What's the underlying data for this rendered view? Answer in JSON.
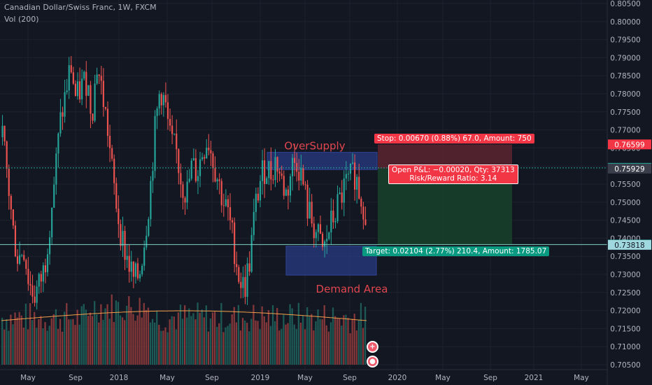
{
  "header": {
    "title": "Canadian Dollar/Swiss Franc, 1W, FXCM",
    "volume_label": "Vol (200)"
  },
  "chart_data": {
    "type": "candlestick",
    "symbol": "Canadian Dollar/Swiss Franc",
    "interval": "1W",
    "ylim": [
      0.705,
      0.805
    ],
    "y_ticks": [
      "0.80500",
      "0.80000",
      "0.79500",
      "0.79000",
      "0.78500",
      "0.78000",
      "0.77500",
      "0.77000",
      "0.76500",
      "0.76000",
      "0.75500",
      "0.75000",
      "0.74500",
      "0.74000",
      "0.73500",
      "0.73000",
      "0.72500",
      "0.72000",
      "0.71500",
      "0.71000",
      "0.70500"
    ],
    "x_ticks": [
      "May",
      "Sep",
      "2018",
      "May",
      "Sep",
      "2019",
      "May",
      "Sep",
      "2020",
      "May",
      "Sep",
      "2021",
      "May"
    ],
    "price_close_path": [
      0.768,
      0.756,
      0.742,
      0.734,
      0.738,
      0.728,
      0.724,
      0.727,
      0.732,
      0.745,
      0.758,
      0.772,
      0.78,
      0.788,
      0.778,
      0.782,
      0.784,
      0.775,
      0.788,
      0.78,
      0.77,
      0.756,
      0.746,
      0.738,
      0.733,
      0.728,
      0.73,
      0.74,
      0.752,
      0.77,
      0.782,
      0.776,
      0.766,
      0.764,
      0.756,
      0.752,
      0.76,
      0.758,
      0.764,
      0.768,
      0.762,
      0.756,
      0.75,
      0.746,
      0.738,
      0.729,
      0.726,
      0.734,
      0.748,
      0.756,
      0.76,
      0.758,
      0.762,
      0.756,
      0.752,
      0.76,
      0.762,
      0.756,
      0.748,
      0.744,
      0.74,
      0.736,
      0.742,
      0.746,
      0.75,
      0.754,
      0.756,
      0.758,
      0.752,
      0.748
    ],
    "price_levels": {
      "stop": 0.76599,
      "last": 0.75949,
      "entry": 0.75929,
      "target": 0.73825,
      "low_marker": 0.73818
    },
    "zones": [
      {
        "label": "OverSupply",
        "top": 0.7638,
        "bottom": 0.759
      },
      {
        "label": "Demand Area",
        "top": 0.7378,
        "bottom": 0.7298
      }
    ],
    "position": {
      "stop_text": "Stop: 0.00670 (0.88%) 67.0, Amount: 750",
      "pnl_text": "Open P&L: −0.00020, Qty: 37313",
      "ratio_text": "Risk/Reward Ratio: 3.14",
      "target_text": "Target: 0.02104 (2.77%) 210.4, Amount: 1785.07"
    },
    "volume_ma_label": "Vol (200)"
  },
  "colors": {
    "background": "#131722",
    "grid": "#1e222d",
    "up": "#26a69a",
    "down": "#ef5350",
    "stop_zone": "#5b2430",
    "target_zone": "#173f2a",
    "supply_zone": "#2a3f8f",
    "stop_badge": "#f23645",
    "last_badge": "#26a69a",
    "target_badge": "#089981",
    "low_badge": "#a0d8e0",
    "zone_text": "#e0464e"
  }
}
